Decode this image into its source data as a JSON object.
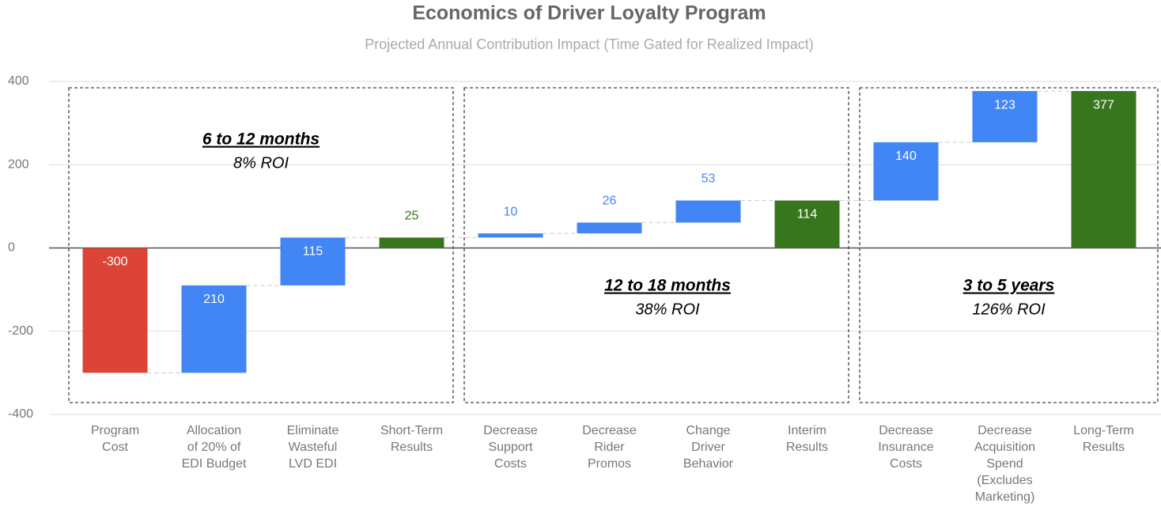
{
  "chart_data": {
    "type": "waterfall",
    "title": "Economics of Driver Loyalty Program",
    "subtitle": "Projected Annual Contribution Impact (Time Gated for Realized Impact)",
    "categories": [
      "Program\nCost",
      "Allocation\nof 20% of\nEDI Budget",
      "Eliminate\nWasteful\nLVD EDI",
      "Short-Term\nResults",
      "Decrease\nSupport\nCosts",
      "Decrease\nRider\nPromos",
      "Change\nDriver\nBehavior",
      "Interim\nResults",
      "Decrease\nInsurance\nCosts",
      "Decrease\nAcquisition\nSpend\n(Excludes\nMarketing)",
      "Long-Term\nResults"
    ],
    "values": [
      -300,
      210,
      115,
      25,
      10,
      26,
      53,
      114,
      140,
      123,
      377
    ],
    "totals": [
      false,
      false,
      false,
      true,
      false,
      false,
      false,
      true,
      false,
      false,
      true
    ],
    "colors": {
      "decrease": "#db4437",
      "increase": "#4285f4",
      "total": "#38761d"
    },
    "ylim": [
      -400,
      400
    ],
    "yticks": [
      -400,
      -200,
      0,
      200,
      400
    ],
    "grid": true,
    "annotations": [
      {
        "title": "6 to 12 months",
        "text": "8% ROI"
      },
      {
        "title": "12 to 18 months",
        "text": "38% ROI"
      },
      {
        "title": "3 to 5 years",
        "text": "126% ROI"
      }
    ]
  }
}
